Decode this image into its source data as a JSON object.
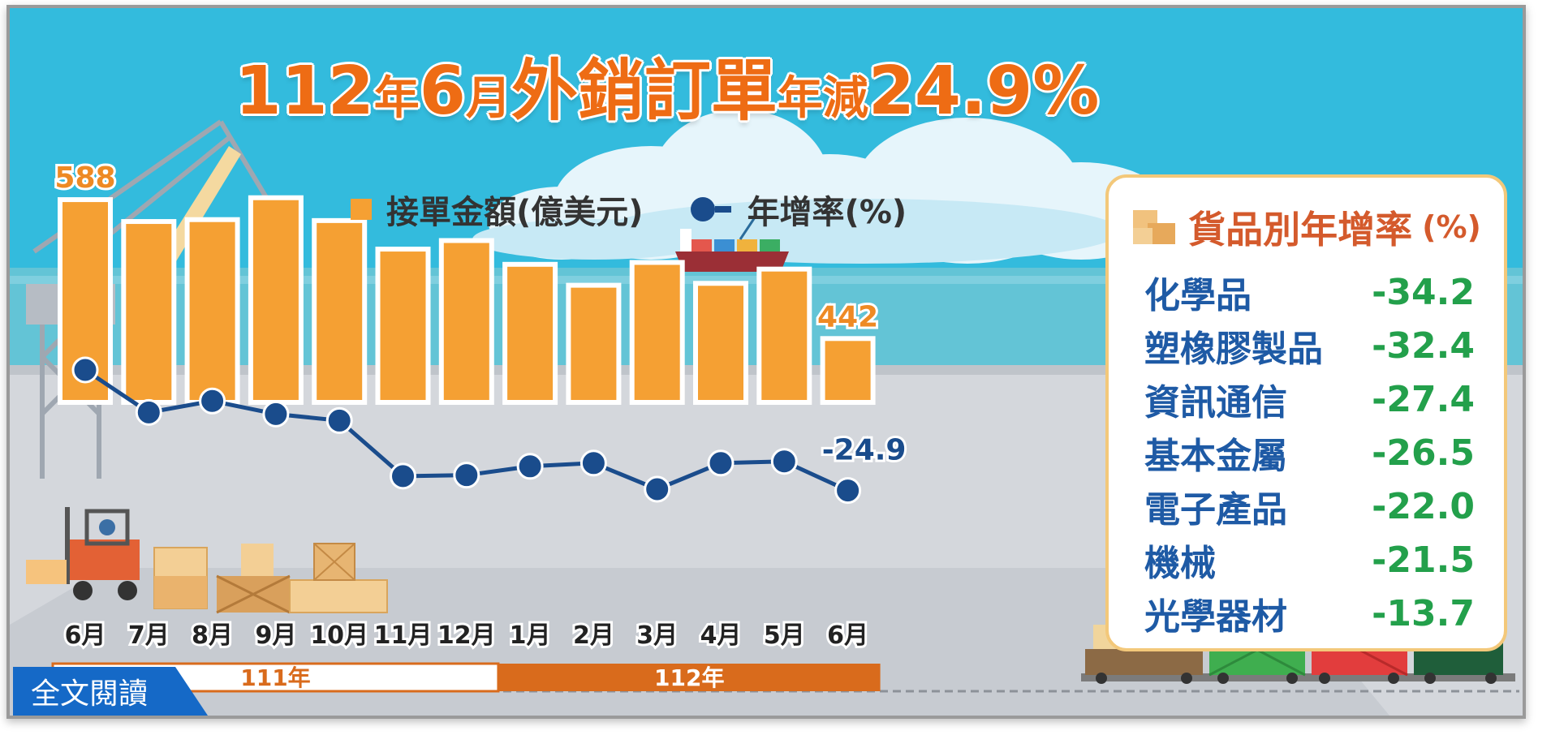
{
  "title": {
    "part1": "112",
    "part2": "年",
    "part3": "6",
    "part4": "月",
    "part5": "外銷訂單",
    "part6": "年減",
    "part7": "24.9%"
  },
  "legend": {
    "bar_label": "接單金額(億美元)",
    "line_label": "年增率(%)"
  },
  "colors": {
    "bar": "#f5a033",
    "line": "#1a4c8c",
    "title": "#ee6c14",
    "sky": "#33bbdd",
    "category_green": "#23a04b",
    "category_blue": "#1e5aa5"
  },
  "chart_data": {
    "type": "bar+line",
    "categories": [
      "6月",
      "7月",
      "8月",
      "9月",
      "10月",
      "11月",
      "12月",
      "1月",
      "2月",
      "3月",
      "4月",
      "5月",
      "6月"
    ],
    "series": [
      {
        "name": "接單金額(億美元)",
        "type": "bar",
        "values": [
          588,
          565,
          567,
          590,
          566,
          536,
          545,
          520,
          498,
          522,
          500,
          515,
          442
        ]
      },
      {
        "name": "年增率(%)",
        "type": "line",
        "values": [
          12.0,
          -1.0,
          2.5,
          -1.5,
          -3.5,
          -20.5,
          -20.2,
          -17.5,
          -16.5,
          -24.5,
          -16.5,
          -16.0,
          -24.9
        ]
      }
    ],
    "data_labels": {
      "bar_first": "588",
      "bar_last": "442",
      "line_last": "-24.9"
    },
    "year_groups": [
      {
        "label": "111年",
        "start": 0,
        "end": 6
      },
      {
        "label": "112年",
        "start": 7,
        "end": 12
      }
    ]
  },
  "side_panel": {
    "title": "貨品別年增率",
    "unit": "(%)",
    "rows": [
      {
        "name": "化學品",
        "value": "-34.2"
      },
      {
        "name": "塑橡膠製品",
        "value": "-32.4"
      },
      {
        "name": "資訊通信",
        "value": "-27.4"
      },
      {
        "name": "基本金屬",
        "value": "-26.5"
      },
      {
        "name": "電子產品",
        "value": "-22.0"
      },
      {
        "name": "機械",
        "value": "-21.5"
      },
      {
        "name": "光學器材",
        "value": "-13.7"
      }
    ]
  },
  "read_more": "全文閱讀"
}
